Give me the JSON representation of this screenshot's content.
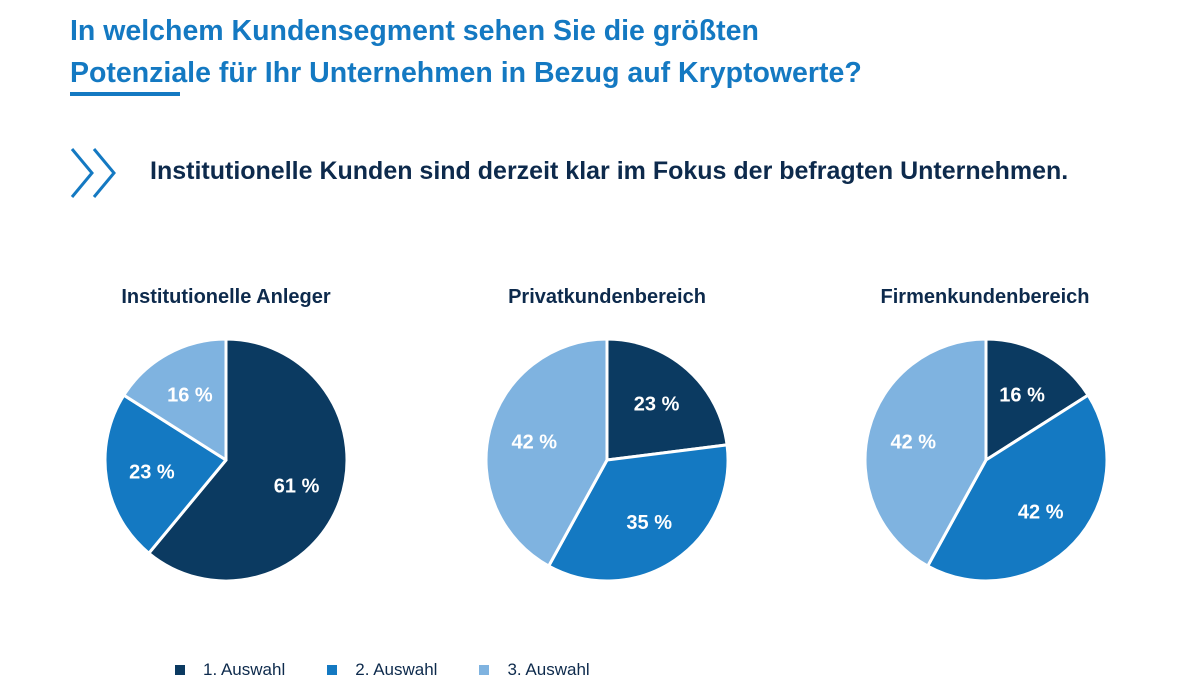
{
  "header": {
    "title_line1": "In welchem Kundensegment sehen Sie die größten",
    "title_line2": "Potenziale für Ihr Unternehmen in Bezug auf Kryptowerte?",
    "subtitle": "Institutionelle Kunden sind derzeit klar im Fokus der befragten Unternehmen."
  },
  "legend": {
    "items": [
      {
        "label": "1. Auswahl",
        "color": "#0b3a61"
      },
      {
        "label": "2. Auswahl",
        "color": "#1479c2"
      },
      {
        "label": "3. Auswahl",
        "color": "#7fb3e0"
      }
    ]
  },
  "chart_data": [
    {
      "type": "pie",
      "title": "Institutionelle Anleger",
      "slices": [
        {
          "name": "1. Auswahl",
          "value": 61,
          "label": "61 %"
        },
        {
          "name": "2. Auswahl",
          "value": 23,
          "label": "23 %"
        },
        {
          "name": "3. Auswahl",
          "value": 16,
          "label": "16 %"
        }
      ]
    },
    {
      "type": "pie",
      "title": "Privatkundenbereich",
      "slices": [
        {
          "name": "1. Auswahl",
          "value": 23,
          "label": "23 %"
        },
        {
          "name": "2. Auswahl",
          "value": 35,
          "label": "35 %"
        },
        {
          "name": "3. Auswahl",
          "value": 42,
          "label": "42 %"
        }
      ]
    },
    {
      "type": "pie",
      "title": "Firmenkundenbereich",
      "slices": [
        {
          "name": "1. Auswahl",
          "value": 16,
          "label": "16 %"
        },
        {
          "name": "2. Auswahl",
          "value": 42,
          "label": "42 %"
        },
        {
          "name": "3. Auswahl",
          "value": 42,
          "label": "42 %"
        }
      ]
    }
  ]
}
